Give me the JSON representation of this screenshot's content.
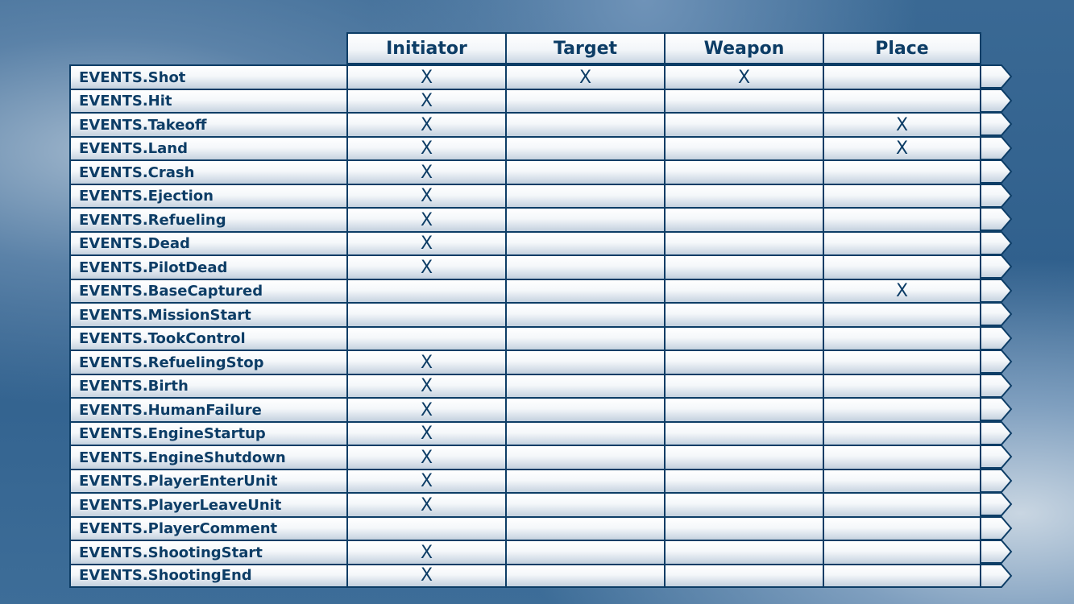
{
  "table": {
    "headers": [
      "Initiator",
      "Target",
      "Weapon",
      "Place"
    ],
    "mark": "X",
    "rows": [
      {
        "event": "EVENTS.Shot",
        "initiator": "X",
        "target": "X",
        "weapon": "X",
        "place": ""
      },
      {
        "event": "EVENTS.Hit",
        "initiator": "X",
        "target": "",
        "weapon": "",
        "place": ""
      },
      {
        "event": "EVENTS.Takeoff",
        "initiator": "X",
        "target": "",
        "weapon": "",
        "place": "X"
      },
      {
        "event": "EVENTS.Land",
        "initiator": "X",
        "target": "",
        "weapon": "",
        "place": "X"
      },
      {
        "event": "EVENTS.Crash",
        "initiator": "X",
        "target": "",
        "weapon": "",
        "place": ""
      },
      {
        "event": "EVENTS.Ejection",
        "initiator": "X",
        "target": "",
        "weapon": "",
        "place": ""
      },
      {
        "event": "EVENTS.Refueling",
        "initiator": "X",
        "target": "",
        "weapon": "",
        "place": ""
      },
      {
        "event": "EVENTS.Dead",
        "initiator": "X",
        "target": "",
        "weapon": "",
        "place": ""
      },
      {
        "event": "EVENTS.PilotDead",
        "initiator": "X",
        "target": "",
        "weapon": "",
        "place": ""
      },
      {
        "event": "EVENTS.BaseCaptured",
        "initiator": "",
        "target": "",
        "weapon": "",
        "place": "X"
      },
      {
        "event": "EVENTS.MissionStart",
        "initiator": "",
        "target": "",
        "weapon": "",
        "place": ""
      },
      {
        "event": "EVENTS.TookControl",
        "initiator": "",
        "target": "",
        "weapon": "",
        "place": ""
      },
      {
        "event": "EVENTS.RefuelingStop",
        "initiator": "X",
        "target": "",
        "weapon": "",
        "place": ""
      },
      {
        "event": "EVENTS.Birth",
        "initiator": "X",
        "target": "",
        "weapon": "",
        "place": ""
      },
      {
        "event": "EVENTS.HumanFailure",
        "initiator": "X",
        "target": "",
        "weapon": "",
        "place": ""
      },
      {
        "event": "EVENTS.EngineStartup",
        "initiator": "X",
        "target": "",
        "weapon": "",
        "place": ""
      },
      {
        "event": "EVENTS.EngineShutdown",
        "initiator": "X",
        "target": "",
        "weapon": "",
        "place": ""
      },
      {
        "event": "EVENTS.PlayerEnterUnit",
        "initiator": "X",
        "target": "",
        "weapon": "",
        "place": ""
      },
      {
        "event": "EVENTS.PlayerLeaveUnit",
        "initiator": "X",
        "target": "",
        "weapon": "",
        "place": ""
      },
      {
        "event": "EVENTS.PlayerComment",
        "initiator": "",
        "target": "",
        "weapon": "",
        "place": ""
      },
      {
        "event": "EVENTS.ShootingStart",
        "initiator": "X",
        "target": "",
        "weapon": "",
        "place": ""
      },
      {
        "event": "EVENTS.ShootingEnd",
        "initiator": "X",
        "target": "",
        "weapon": "",
        "place": ""
      }
    ]
  }
}
